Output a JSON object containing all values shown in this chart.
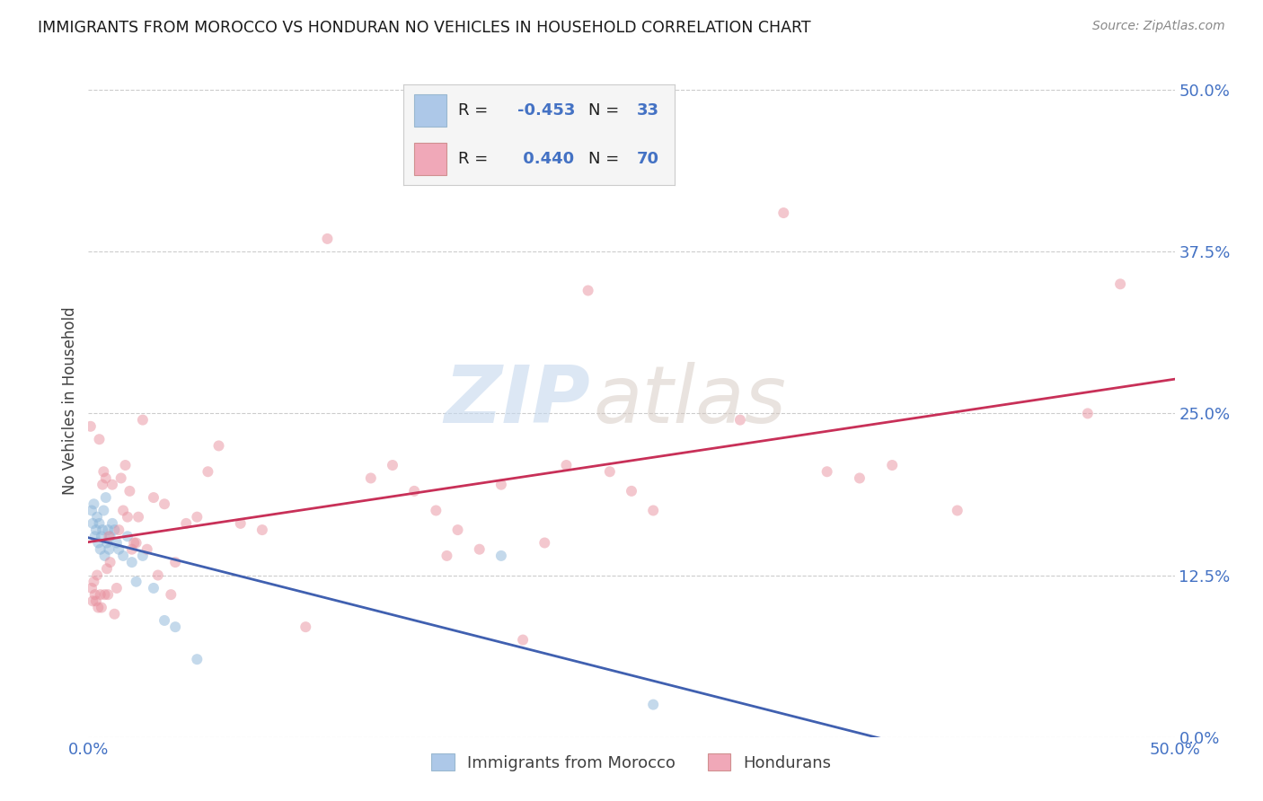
{
  "title": "IMMIGRANTS FROM MOROCCO VS HONDURAN NO VEHICLES IN HOUSEHOLD CORRELATION CHART",
  "source": "Source: ZipAtlas.com",
  "ylabel": "No Vehicles in Household",
  "ytick_values": [
    0.0,
    12.5,
    25.0,
    37.5,
    50.0
  ],
  "xlim": [
    0.0,
    50.0
  ],
  "ylim": [
    0.0,
    52.0
  ],
  "legend_R1": "-0.453",
  "legend_N1": "33",
  "legend_R2": "0.440",
  "legend_N2": "70",
  "legend_label1": "Immigrants from Morocco",
  "legend_label2": "Hondurans",
  "morocco_x": [
    0.15,
    0.2,
    0.25,
    0.3,
    0.35,
    0.4,
    0.45,
    0.5,
    0.55,
    0.6,
    0.65,
    0.7,
    0.75,
    0.8,
    0.85,
    0.9,
    0.95,
    1.0,
    1.1,
    1.2,
    1.3,
    1.4,
    1.6,
    1.8,
    2.0,
    2.2,
    2.5,
    3.0,
    3.5,
    4.0,
    5.0,
    19.0,
    26.0
  ],
  "morocco_y": [
    17.5,
    16.5,
    18.0,
    15.5,
    16.0,
    17.0,
    15.0,
    16.5,
    14.5,
    15.5,
    16.0,
    17.5,
    14.0,
    18.5,
    15.0,
    16.0,
    14.5,
    15.5,
    16.5,
    16.0,
    15.0,
    14.5,
    14.0,
    15.5,
    13.5,
    12.0,
    14.0,
    11.5,
    9.0,
    8.5,
    6.0,
    14.0,
    2.5
  ],
  "honduran_x": [
    0.1,
    0.15,
    0.2,
    0.25,
    0.3,
    0.35,
    0.4,
    0.45,
    0.5,
    0.55,
    0.6,
    0.65,
    0.7,
    0.75,
    0.8,
    0.85,
    0.9,
    0.95,
    1.0,
    1.1,
    1.2,
    1.3,
    1.4,
    1.5,
    1.6,
    1.7,
    1.8,
    1.9,
    2.0,
    2.1,
    2.2,
    2.3,
    2.5,
    2.7,
    3.0,
    3.2,
    3.5,
    3.8,
    4.0,
    4.5,
    5.0,
    5.5,
    6.0,
    7.0,
    8.0,
    10.0,
    11.0,
    13.0,
    14.0,
    15.0,
    16.0,
    17.0,
    18.0,
    20.0,
    22.0,
    23.0,
    25.0,
    26.0,
    30.0,
    32.0,
    34.0,
    35.5,
    37.0,
    40.0,
    46.0,
    47.5,
    16.5,
    19.0,
    21.0,
    24.0
  ],
  "honduran_y": [
    24.0,
    11.5,
    10.5,
    12.0,
    11.0,
    10.5,
    12.5,
    10.0,
    23.0,
    11.0,
    10.0,
    19.5,
    20.5,
    11.0,
    20.0,
    13.0,
    11.0,
    15.5,
    13.5,
    19.5,
    9.5,
    11.5,
    16.0,
    20.0,
    17.5,
    21.0,
    17.0,
    19.0,
    14.5,
    15.0,
    15.0,
    17.0,
    24.5,
    14.5,
    18.5,
    12.5,
    18.0,
    11.0,
    13.5,
    16.5,
    17.0,
    20.5,
    22.5,
    16.5,
    16.0,
    8.5,
    38.5,
    20.0,
    21.0,
    19.0,
    17.5,
    16.0,
    14.5,
    7.5,
    21.0,
    34.5,
    19.0,
    17.5,
    24.5,
    40.5,
    20.5,
    20.0,
    21.0,
    17.5,
    25.0,
    35.0,
    14.0,
    19.5,
    15.0,
    20.5
  ],
  "morocco_color": "#8ab4d8",
  "honduran_color": "#e8909e",
  "morocco_line_color": "#4060b0",
  "honduran_line_color": "#c83058",
  "background_color": "#ffffff",
  "grid_color": "#cccccc",
  "watermark_zip": "ZIP",
  "watermark_atlas": "atlas",
  "marker_size": 75,
  "marker_alpha": 0.5,
  "legend_patch_color1": "#adc8e8",
  "legend_patch_color2": "#f0a8b8"
}
